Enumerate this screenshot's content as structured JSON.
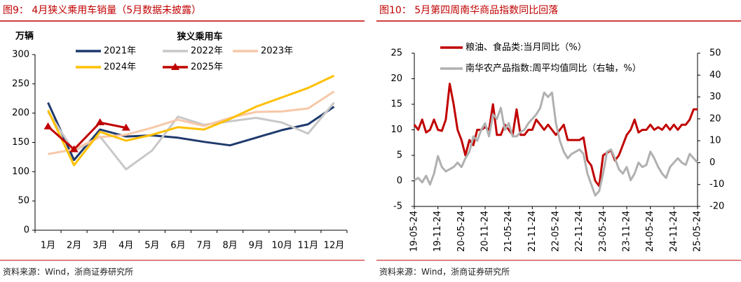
{
  "chart_data": [
    {
      "type": "line",
      "title": "图9：  4月狭义乘用车销量（5月数据未披露）",
      "y_label": "万辆",
      "legend_title": "狭义乘用车",
      "source": "资料来源：Wind，浙商证券研究所",
      "categories": [
        "1月",
        "2月",
        "3月",
        "4月",
        "5月",
        "6月",
        "7月",
        "8月",
        "9月",
        "10月",
        "11月",
        "12月"
      ],
      "ylim": [
        0,
        300
      ],
      "yticks": [
        0,
        50,
        100,
        150,
        200,
        250,
        300
      ],
      "series": [
        {
          "name": "2021年",
          "color": "#1f3a6e",
          "values": [
            218,
            120,
            172,
            160,
            162,
            158,
            151,
            145,
            158,
            171,
            181,
            211
          ]
        },
        {
          "name": "2022年",
          "color": "#c8c8c8",
          "values": [
            202,
            135,
            160,
            104,
            136,
            194,
            180,
            186,
            192,
            184,
            165,
            218
          ]
        },
        {
          "name": "2023年",
          "color": "#f7c8a8",
          "values": [
            130,
            138,
            159,
            163,
            175,
            189,
            178,
            192,
            202,
            203,
            208,
            237
          ]
        },
        {
          "name": "2024年",
          "color": "#ffc000",
          "values": [
            205,
            111,
            168,
            153,
            163,
            176,
            172,
            190,
            211,
            227,
            243,
            264
          ]
        },
        {
          "name": "2025年",
          "color": "#c00000",
          "marker": "triangle",
          "values": [
            177,
            138,
            184,
            175,
            null,
            null,
            null,
            null,
            null,
            null,
            null,
            null
          ]
        }
      ]
    },
    {
      "type": "line",
      "title": "图10：  5月第四周南华商品指数同比回落",
      "source": "资料来源：Wind，浙商证券研究所",
      "categories": [
        "19-05-24",
        null,
        null,
        null,
        null,
        null,
        "19-11-24",
        null,
        null,
        null,
        null,
        null,
        "20-05-24",
        null,
        null,
        null,
        null,
        null,
        "20-11-24",
        null,
        null,
        null,
        null,
        null,
        "21-05-24",
        null,
        null,
        null,
        null,
        null,
        "21-11-24",
        null,
        null,
        null,
        null,
        null,
        "22-05-24",
        null,
        null,
        null,
        null,
        null,
        "22-11-24",
        null,
        null,
        null,
        null,
        null,
        "23-05-24",
        null,
        null,
        null,
        null,
        null,
        "23-11-24",
        null,
        null,
        null,
        null,
        null,
        "24-05-24",
        null,
        null,
        null,
        null,
        null,
        "24-11-24",
        null,
        null,
        null,
        null,
        null,
        "25-05-24"
      ],
      "ylim": [
        -5,
        25
      ],
      "yticks": [
        -5,
        0,
        5,
        10,
        15,
        20,
        25
      ],
      "y2lim": [
        -20,
        50
      ],
      "y2ticks": [
        -20,
        -10,
        0,
        10,
        20,
        30,
        40,
        50
      ],
      "series": [
        {
          "name": "粮油、食品类:当月同比（%）",
          "color": "#c00000",
          "values": [
            11,
            10,
            12,
            9.5,
            10,
            12,
            10,
            9.8,
            12,
            19,
            15,
            10,
            8,
            5,
            8,
            7,
            10,
            10,
            10.5,
            10,
            15,
            9,
            9,
            11,
            10,
            9,
            14,
            9,
            9,
            10,
            10,
            12,
            11,
            10,
            11,
            10,
            9,
            10,
            11,
            8,
            8,
            8,
            8,
            8.5,
            4,
            3,
            0,
            -1,
            5,
            5.5,
            6,
            4,
            5,
            7,
            9,
            10,
            12,
            9.5,
            10,
            10,
            11,
            10,
            10.5,
            10,
            11,
            10,
            11,
            10,
            11,
            11,
            12,
            14,
            14
          ]
        },
        {
          "name": "南华农产品指数:周平均值同比（右轴，%）",
          "color": "#b0b0b0",
          "axis": "y2",
          "values": [
            -8,
            -7,
            -9,
            -6,
            -10,
            -5,
            3,
            -2,
            -4,
            -3,
            -2,
            0,
            -2,
            2,
            5,
            12,
            10,
            15,
            18,
            12,
            22,
            20,
            25,
            15,
            18,
            12,
            12,
            14,
            15,
            18,
            20,
            22,
            25,
            32,
            30,
            32,
            18,
            10,
            5,
            2,
            4,
            5,
            6,
            4,
            -5,
            -10,
            -15,
            -13,
            -5,
            5,
            6,
            2,
            -3,
            -5,
            -2,
            -8,
            -5,
            0,
            -2,
            -1,
            5,
            2,
            -2,
            -5,
            -7,
            -2,
            0,
            2,
            0,
            -1,
            4,
            2,
            0
          ]
        }
      ]
    }
  ]
}
